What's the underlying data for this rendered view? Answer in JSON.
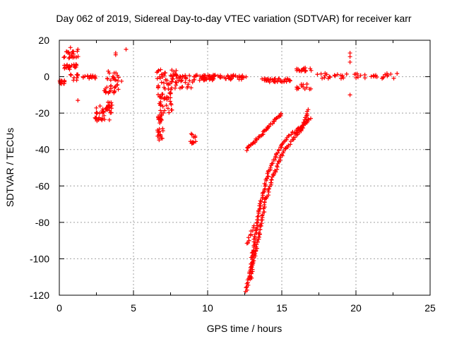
{
  "chart_data": {
    "type": "scatter",
    "title": "Day 062 of 2019, Sidereal Day-to-day VTEC variation (SDTVAR) for receiver karr",
    "xlabel": "GPS time / hours",
    "ylabel": "SDTVAR / TECUs",
    "xlim": [
      0,
      25
    ],
    "ylim": [
      -120,
      20
    ],
    "xticks": [
      0,
      5,
      10,
      15,
      20,
      25
    ],
    "yticks": [
      -120,
      -100,
      -80,
      -60,
      -40,
      -20,
      0,
      20
    ],
    "xtick_labels": [
      "0",
      "5",
      "10",
      "15",
      "20",
      "25"
    ],
    "ytick_labels": [
      "-120",
      "-100",
      "-80",
      "-60",
      "-40",
      "-20",
      "0",
      "20"
    ],
    "grid": true,
    "marker": "plus",
    "series": [
      {
        "name": "SDTVAR",
        "color": "#ff0000",
        "clusters": [
          {
            "x0": 0.0,
            "x1": 0.4,
            "y0": -4,
            "y1": -2,
            "n": 12
          },
          {
            "x0": 0.25,
            "x1": 1.3,
            "y0": 10,
            "y1": 14,
            "n": 22
          },
          {
            "x0": 0.3,
            "x1": 1.2,
            "y0": 4,
            "y1": 7,
            "n": 20
          },
          {
            "x0": 0.7,
            "x1": 1.3,
            "y0": -2,
            "y1": 2,
            "n": 10
          },
          {
            "x0": 1.4,
            "x1": 2.5,
            "y0": -1,
            "y1": 1,
            "n": 14
          },
          {
            "x0": 2.4,
            "x1": 3.4,
            "y0": -25,
            "y1": -16,
            "n": 28
          },
          {
            "x0": 2.8,
            "x1": 3.6,
            "y0": -20,
            "y1": -14,
            "n": 18
          },
          {
            "x0": 3.0,
            "x1": 4.0,
            "y0": -10,
            "y1": -4,
            "n": 22
          },
          {
            "x0": 3.2,
            "x1": 4.2,
            "y0": -3,
            "y1": 3,
            "n": 16
          },
          {
            "x0": 6.6,
            "x1": 7.0,
            "y0": -36,
            "y1": -20,
            "n": 30
          },
          {
            "x0": 6.7,
            "x1": 7.6,
            "y0": -20,
            "y1": -10,
            "n": 26
          },
          {
            "x0": 6.6,
            "x1": 7.6,
            "y0": -12,
            "y1": -2,
            "n": 24
          },
          {
            "x0": 6.5,
            "x1": 8.0,
            "y0": -4,
            "y1": 4,
            "n": 30
          },
          {
            "x0": 7.8,
            "x1": 9.0,
            "y0": -7,
            "y1": 1,
            "n": 30
          },
          {
            "x0": 8.8,
            "x1": 9.2,
            "y0": -38,
            "y1": -31,
            "n": 12
          },
          {
            "x0": 9.0,
            "x1": 12.6,
            "y0": -2,
            "y1": 1,
            "n": 80
          },
          {
            "x0": 13.6,
            "x1": 15.8,
            "y0": -3,
            "y1": -1,
            "n": 40
          },
          {
            "x0": 16.0,
            "x1": 17.0,
            "y0": 3,
            "y1": 5,
            "n": 16
          },
          {
            "x0": 16.0,
            "x1": 17.0,
            "y0": -7,
            "y1": -4,
            "n": 14
          },
          {
            "x0": 17.0,
            "x1": 22.8,
            "y0": -1,
            "y1": 2,
            "n": 40
          }
        ],
        "tracks": [
          {
            "points": [
              [
                12.6,
                -40
              ],
              [
                13.5,
                -33
              ],
              [
                14.5,
                -24
              ],
              [
                15.0,
                -20
              ]
            ],
            "n": 45
          },
          {
            "points": [
              [
                12.6,
                -118
              ],
              [
                12.9,
                -104
              ],
              [
                13.2,
                -88
              ],
              [
                13.6,
                -68
              ],
              [
                14.1,
                -52
              ],
              [
                14.8,
                -40
              ],
              [
                15.5,
                -32
              ],
              [
                16.2,
                -28
              ],
              [
                16.8,
                -23
              ]
            ],
            "n": 120
          },
          {
            "points": [
              [
                12.9,
                -111
              ],
              [
                13.2,
                -98
              ],
              [
                13.5,
                -85
              ],
              [
                13.9,
                -68
              ],
              [
                14.4,
                -55
              ],
              [
                15.0,
                -43
              ],
              [
                15.6,
                -36
              ],
              [
                16.2,
                -30
              ],
              [
                16.9,
                -23
              ]
            ],
            "n": 110
          },
          {
            "points": [
              [
                12.7,
                -92
              ],
              [
                12.9,
                -86
              ],
              [
                13.1,
                -82
              ]
            ],
            "n": 10
          },
          {
            "points": [
              [
                15.9,
                -31
              ],
              [
                16.4,
                -28
              ],
              [
                16.8,
                -18
              ]
            ],
            "n": 18
          }
        ],
        "points": [
          [
            0.75,
            16
          ],
          [
            1.25,
            15
          ],
          [
            3.8,
            13
          ],
          [
            3.8,
            12
          ],
          [
            4.5,
            15
          ],
          [
            1.25,
            -13
          ],
          [
            3.3,
            3
          ],
          [
            19.6,
            13
          ],
          [
            19.6,
            11
          ],
          [
            19.6,
            8
          ],
          [
            19.6,
            -10
          ],
          [
            19.0,
            -1
          ],
          [
            18.2,
            0
          ],
          [
            20.6,
            1
          ]
        ]
      }
    ]
  }
}
